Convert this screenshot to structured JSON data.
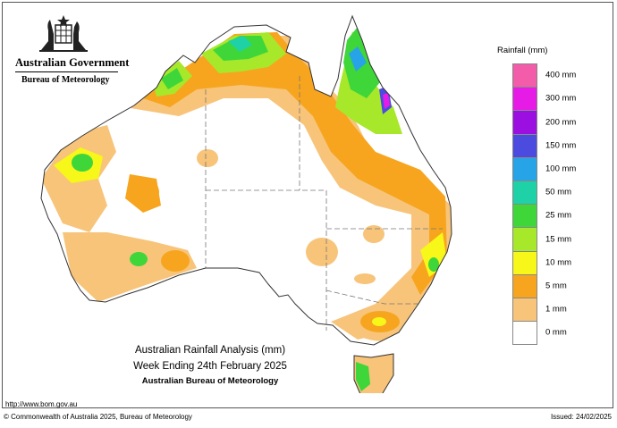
{
  "header": {
    "government": "Australian Government",
    "bureau": "Bureau of Meteorology"
  },
  "legend": {
    "title": "Rainfall (mm)",
    "items": [
      {
        "label": "400 mm",
        "color": "#f25ca8"
      },
      {
        "label": "300 mm",
        "color": "#e61ce6"
      },
      {
        "label": "200 mm",
        "color": "#9b10e0"
      },
      {
        "label": "150 mm",
        "color": "#4b4be0"
      },
      {
        "label": "100 mm",
        "color": "#27a3e8"
      },
      {
        "label": "50 mm",
        "color": "#1fd1a6"
      },
      {
        "label": "25 mm",
        "color": "#3fd63a"
      },
      {
        "label": "15 mm",
        "color": "#a8e82a"
      },
      {
        "label": "10 mm",
        "color": "#f7f71a"
      },
      {
        "label": "5 mm",
        "color": "#f7a51e"
      },
      {
        "label": "1 mm",
        "color": "#f7c47a"
      },
      {
        "label": "0 mm",
        "color": "#ffffff"
      }
    ]
  },
  "caption": {
    "line1": "Australian Rainfall Analysis (mm)",
    "line2": "Week Ending 24th February 2025",
    "line3": "Australian Bureau of Meteorology"
  },
  "footer": {
    "url": "http://www.bom.gov.au",
    "copyright": "© Commonwealth of Australia 2025, Bureau of Meteorology",
    "issued": "Issued: 24/02/2025"
  }
}
